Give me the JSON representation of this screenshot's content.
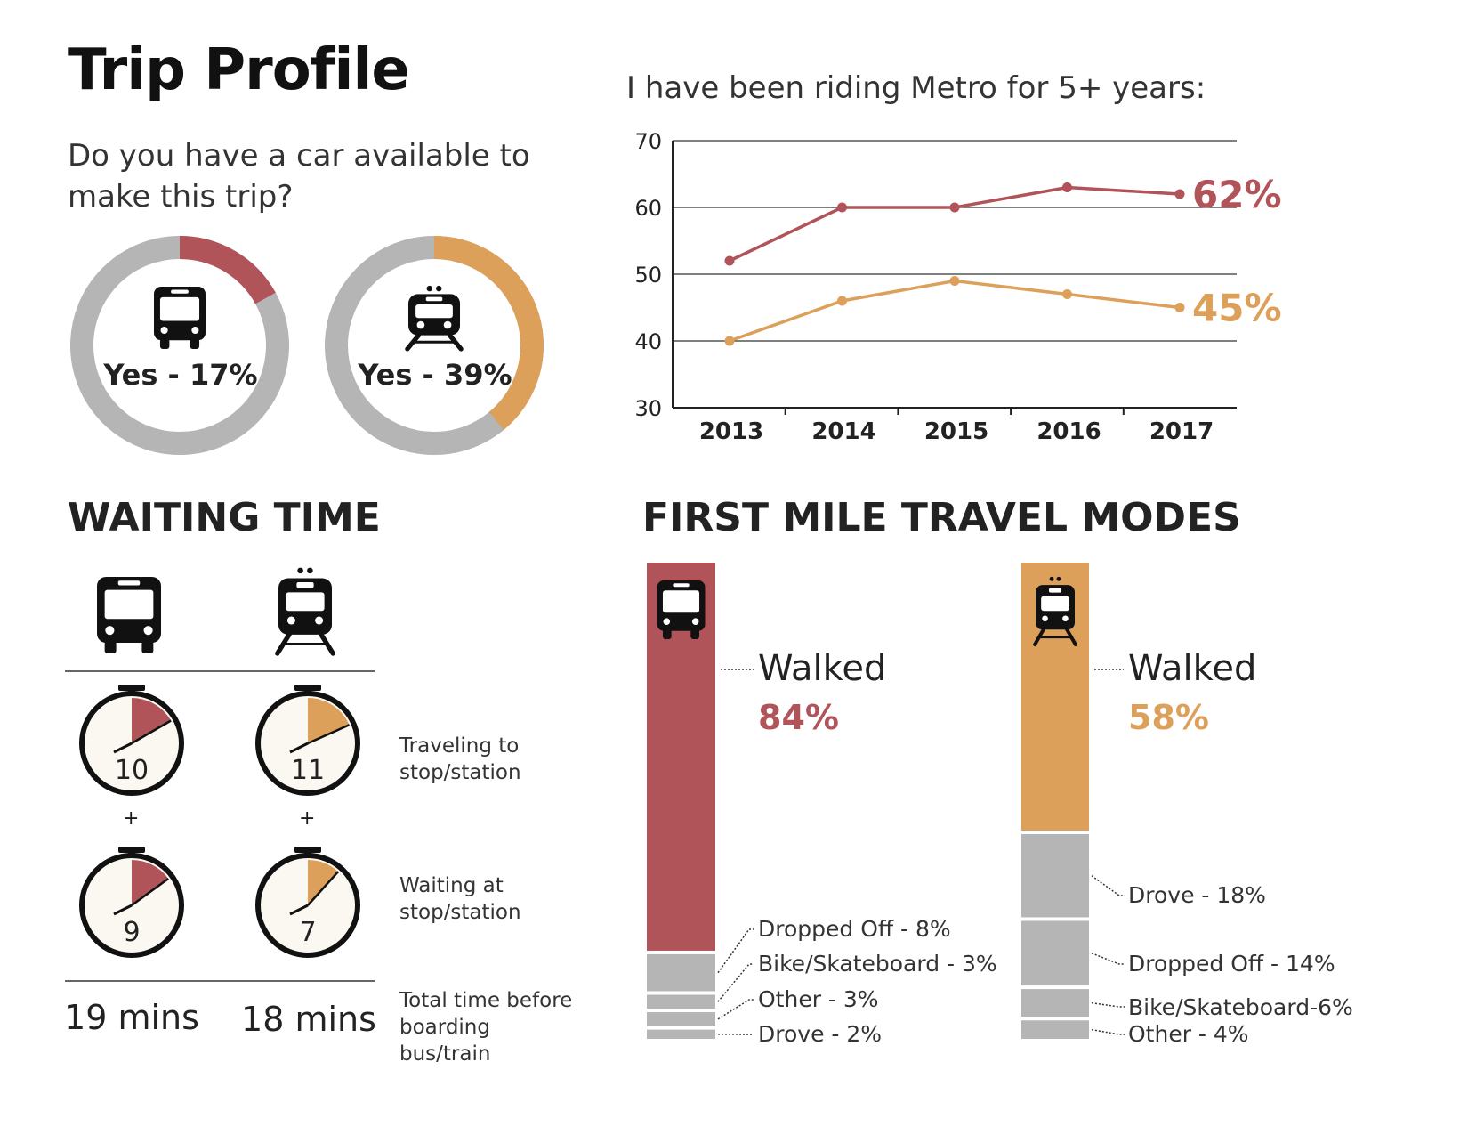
{
  "title": "Trip Profile",
  "car_question": "Do you have a car available to make this trip?",
  "colors": {
    "bus": "#b1545a",
    "rail": "#dda05a",
    "neutral": "#b5b5b5",
    "dark": "#111111"
  },
  "donuts": [
    {
      "mode": "bus",
      "icon": "bus-icon",
      "label": "Yes - 17%",
      "value": 0.17
    },
    {
      "mode": "rail",
      "icon": "train-icon",
      "label": "Yes - 39%",
      "value": 0.39
    }
  ],
  "chart_data": [
    {
      "type": "line",
      "title": "I have been riding Metro for 5+ years:",
      "x": [
        "2013",
        "2014",
        "2015",
        "2016",
        "2017"
      ],
      "ylim": [
        30,
        70
      ],
      "yticks": [
        "30",
        "40",
        "50",
        "60",
        "70"
      ],
      "grid": true,
      "series": [
        {
          "mode": "bus",
          "values": [
            52,
            60,
            60,
            63,
            62
          ],
          "end_label": "62%"
        },
        {
          "mode": "rail",
          "values": [
            40,
            46,
            49,
            47,
            45
          ],
          "end_label": "45%"
        }
      ]
    },
    {
      "type": "bar",
      "title": "FIRST MILE TRAVEL MODES",
      "stacked": true,
      "bars": [
        {
          "mode": "bus",
          "icon": "bus-icon",
          "segments": [
            {
              "label": "Walked",
              "value": 84,
              "text": "84%"
            },
            {
              "label": "Dropped Off - 8%",
              "value": 8
            },
            {
              "label": "Bike/Skateboard - 3%",
              "value": 3
            },
            {
              "label": "Other - 3%",
              "value": 3
            },
            {
              "label": "Drove - 2%",
              "value": 2
            }
          ]
        },
        {
          "mode": "rail",
          "icon": "train-icon",
          "segments": [
            {
              "label": "Walked",
              "value": 58,
              "text": "58%"
            },
            {
              "label": "Drove - 18%",
              "value": 18
            },
            {
              "label": "Dropped Off - 14%",
              "value": 14
            },
            {
              "label": "Bike/Skateboard-6%",
              "value": 6
            },
            {
              "label": "Other - 4%",
              "value": 4
            }
          ]
        }
      ]
    }
  ],
  "waiting": {
    "title": "WAITING TIME",
    "plus": "+",
    "rows": [
      {
        "label": "Traveling to stop/station",
        "bus": 10,
        "rail": 11
      },
      {
        "label": "Waiting at stop/station",
        "bus": 9,
        "rail": 7
      }
    ],
    "totals_label": "Total time before boarding bus/train",
    "totals": {
      "bus": "19 mins",
      "rail": "18 mins"
    }
  }
}
